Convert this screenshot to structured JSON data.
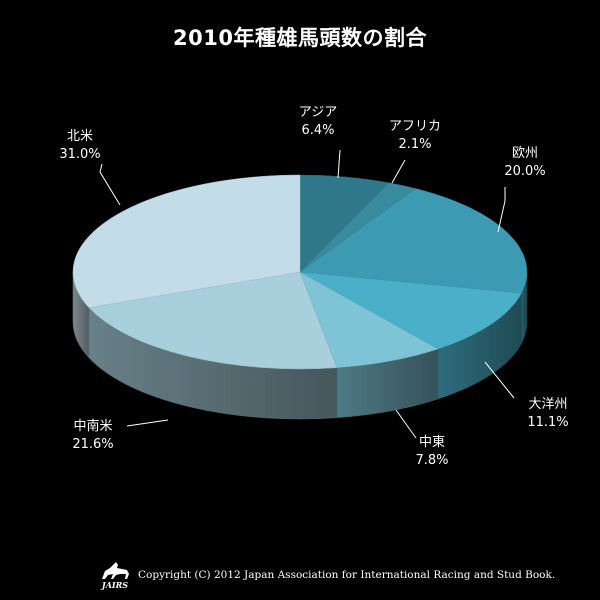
{
  "chart_data": {
    "type": "pie",
    "title": "2010年種雄馬頭数の割合",
    "slices": [
      {
        "label": "アジア",
        "value": 6.4,
        "display": "6.4%",
        "color": "#2e7889"
      },
      {
        "label": "アフリカ",
        "value": 2.1,
        "display": "2.1%",
        "color": "#3a8a9e"
      },
      {
        "label": "欧州",
        "value": 20.0,
        "display": "20.0%",
        "color": "#3d9ab3"
      },
      {
        "label": "大洋州",
        "value": 11.1,
        "display": "11.1%",
        "color": "#4ab0c9"
      },
      {
        "label": "中東",
        "value": 7.8,
        "display": "7.8%",
        "color": "#7ec3d6"
      },
      {
        "label": "中南米",
        "value": 21.6,
        "display": "21.6%",
        "color": "#a7cfdc"
      },
      {
        "label": "北米",
        "value": 31.0,
        "display": "31.0%",
        "color": "#c3dde8"
      }
    ],
    "background": "#000000",
    "label_color": "#ffffff"
  },
  "footer": {
    "copyright": "Copyright (C) 2012 Japan Association for International Racing and Stud Book.",
    "logo_text": "JAIRS"
  }
}
